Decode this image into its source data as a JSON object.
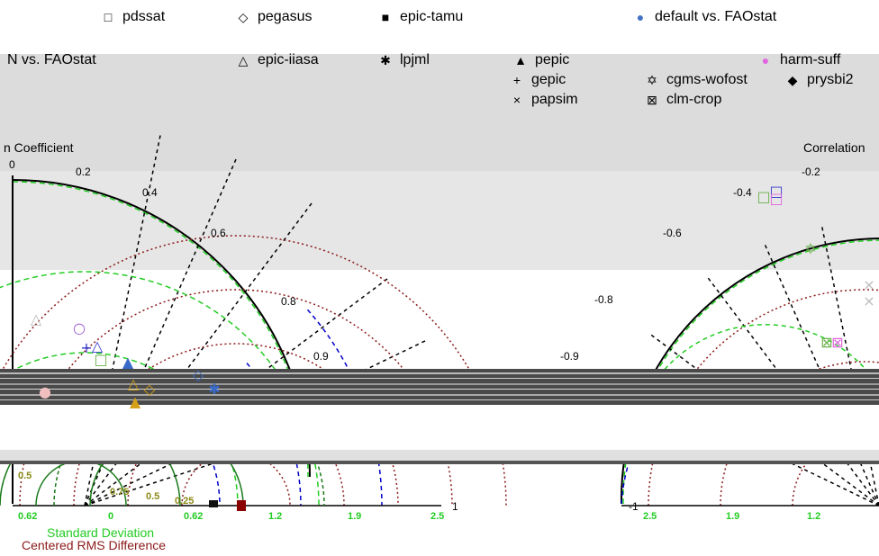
{
  "legend": {
    "items": [
      {
        "label": "pdssat",
        "symbol": "□"
      },
      {
        "label": "pegasus",
        "symbol": "◇"
      },
      {
        "label": "epic-tamu",
        "symbol": "■"
      },
      {
        "label": "default vs. FAOstat",
        "symbol": "●",
        "color": "#4472c4"
      },
      {
        "label": "N vs. FAOstat",
        "symbol": ""
      },
      {
        "label": "epic-iiasa",
        "symbol": "△"
      },
      {
        "label": "lpjml",
        "symbol": "✱"
      },
      {
        "label": "pepic",
        "symbol": "▲"
      },
      {
        "label": "harm-suff",
        "symbol": "●",
        "color": "#e066e0"
      },
      {
        "label": "gepic",
        "symbol": "+"
      },
      {
        "label": "cgms-wofost",
        "symbol": "✡"
      },
      {
        "label": "prysbi2",
        "symbol": "◆"
      },
      {
        "label": "papsim",
        "symbol": "×"
      },
      {
        "label": "clm-crop",
        "symbol": "⊠"
      }
    ]
  },
  "chart_data": {
    "type": "scatter",
    "subtype": "taylor-diagram",
    "left_axis_title": "n Coefficient",
    "right_axis_title": "Correlation",
    "xlabel": "Standard Deviation",
    "xlabel2": "Centered RMS Difference",
    "left_correlation_ticks": [
      "0",
      "0.2",
      "0.4",
      "0.6",
      "0.8",
      "0.9"
    ],
    "right_correlation_ticks": [
      "-0.2",
      "-0.4",
      "-0.6",
      "-0.8",
      "-0.9"
    ],
    "left_sd_ticks": [
      "0.62",
      "0",
      "0.62",
      "1.2",
      "1.9",
      "2.5"
    ],
    "right_sd_ticks": [
      "2.5",
      "1.9",
      "1.2"
    ],
    "rms_ticks_visible": [
      "0.5",
      "0.75",
      "0.5",
      "0.25"
    ],
    "axis_end_labels": [
      "1",
      "-1"
    ],
    "colors": {
      "sd_arc": "#000000",
      "correlation_lines": "#000000",
      "rms_arcs": "#8b1a1a",
      "green_arcs": "#22cc22",
      "blue_arcs": "#0000cc",
      "sd_label_color": "#22cc22",
      "rms_label_color": "#8b1a1a"
    }
  }
}
